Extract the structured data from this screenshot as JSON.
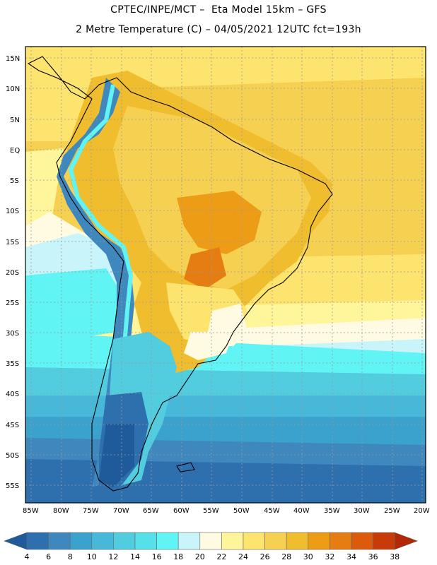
{
  "header": {
    "line1": "CPTEC/INPE/MCT –  Eta Model 15km – GFS",
    "line2": "2 Metre Temperature (C) – 04/05/2021 12UTC fct=193h"
  },
  "map": {
    "lat_labels": [
      "15N",
      "10N",
      "5N",
      "EQ",
      "5S",
      "10S",
      "15S",
      "20S",
      "25S",
      "30S",
      "35S",
      "40S",
      "45S",
      "50S",
      "55S"
    ],
    "lon_labels": [
      "85W",
      "80W",
      "75W",
      "70W",
      "65W",
      "60W",
      "55W",
      "50W",
      "45W",
      "40W",
      "35W",
      "30W",
      "25W",
      "20W"
    ]
  },
  "colorbar": {
    "labels": [
      "4",
      "6",
      "8",
      "10",
      "12",
      "14",
      "16",
      "18",
      "20",
      "22",
      "24",
      "26",
      "28",
      "30",
      "32",
      "34",
      "36",
      "38"
    ],
    "colors": [
      "#1f5a9a",
      "#2e6fae",
      "#3f88be",
      "#3aa2cc",
      "#47b8d8",
      "#52ccdf",
      "#58e0ea",
      "#60f4f4",
      "#c8f4fa",
      "#fffbe2",
      "#fff59a",
      "#fde46e",
      "#f6d050",
      "#f0bd2e",
      "#ed9d15",
      "#e67d12",
      "#dc5a0c",
      "#c83a08",
      "#b02806"
    ]
  }
}
